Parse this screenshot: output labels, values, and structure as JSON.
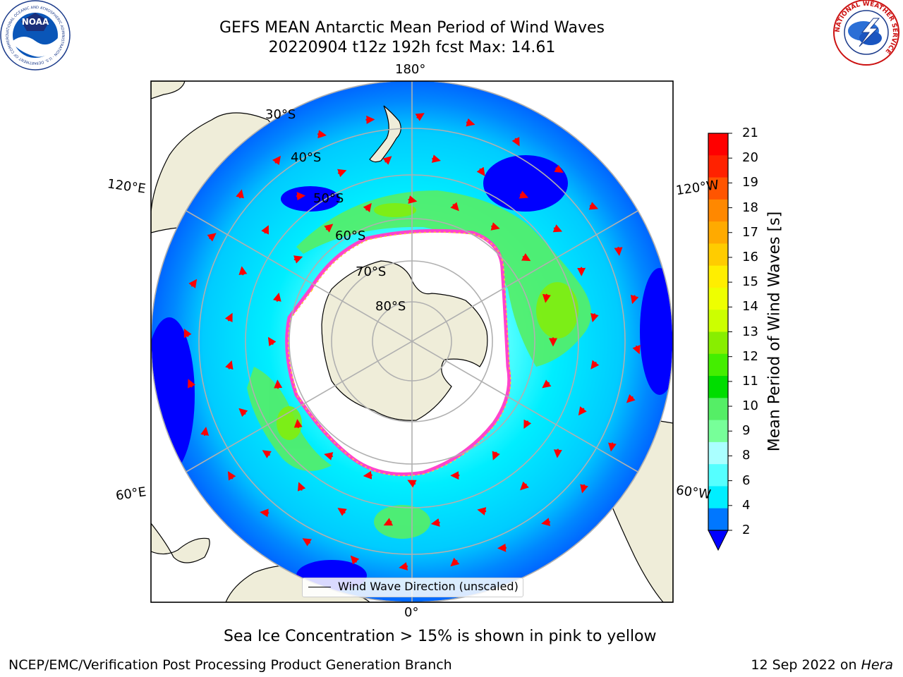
{
  "header": {
    "title_line1": "GEFS MEAN Antarctic Mean Period of Wind Waves",
    "title_line2": "20220904 t12z 192h fcst   Max: 14.61"
  },
  "logos": {
    "noaa_text": "NOAA",
    "noaa_ring_text": "NATIONAL OCEANIC AND ATMOSPHERIC ADMINISTRATION · U.S. DEPARTMENT OF COMMERCE",
    "nws_ring_text": "NATIONAL WEATHER SERVICE"
  },
  "map": {
    "projection": "south-polar-stereographic",
    "longitude_labels": {
      "top": "180°",
      "bottom": "0°",
      "left_upper": "120°E",
      "left_lower": "60°E",
      "right_upper": "120°W",
      "right_lower": "60°W"
    },
    "latitude_labels": [
      "30°S",
      "40°S",
      "50°S",
      "60°S",
      "70°S",
      "80°S"
    ],
    "legend_text": "Wind Wave Direction (unscaled)",
    "colors": {
      "land": "#efedd9",
      "coast": "#000000",
      "grid": "#b0b0b0",
      "arrows": "#ff0000",
      "frame": "#000000"
    }
  },
  "colorbar": {
    "label": "Mean Period of Wind Waves [s]",
    "ticks": [
      "21",
      "20",
      "19",
      "18",
      "17",
      "16",
      "15",
      "14",
      "13",
      "12",
      "11",
      "10",
      "9",
      "8",
      "6",
      "4",
      "2"
    ],
    "bands": [
      "#ff0000",
      "#ff2200",
      "#ff5500",
      "#ff8800",
      "#ffaa00",
      "#ffcc00",
      "#ffee00",
      "#eeff00",
      "#ccff00",
      "#88ee00",
      "#44ee00",
      "#00dd00",
      "#55ee66",
      "#77ff99",
      "#aaffff",
      "#55ffff",
      "#00eeff",
      "#0077ff"
    ],
    "extend_color": "#0000ff"
  },
  "notes": {
    "sea_ice": "Sea Ice Concentration > 15% is shown in pink to yellow"
  },
  "footer": {
    "left": "NCEP/EMC/Verification Post Processing Product Generation Branch",
    "right_prefix": "12 Sep 2022 on ",
    "right_italic": "Hera"
  }
}
